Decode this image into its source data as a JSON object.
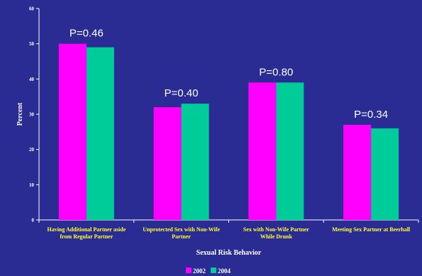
{
  "chart_data": {
    "type": "bar",
    "xlabel": "Sexual Risk Behavior",
    "ylabel": "Percent",
    "ylim": [
      0,
      60
    ],
    "yticks": [
      0,
      10,
      20,
      30,
      40,
      50,
      60
    ],
    "grid": false,
    "legend_position": "bottom",
    "categories": [
      [
        "Having Additional Partner aside",
        "from Regular Partner"
      ],
      [
        "Unprotected Sex with Non-Wife",
        "Partner"
      ],
      [
        "Sex with Non-Wife Partner",
        "While Drunk"
      ],
      [
        "Meeting Sex Partner at Beerhall"
      ]
    ],
    "series": [
      {
        "name": "2002",
        "color": "#ff00ff",
        "values": [
          50,
          32,
          39,
          27
        ]
      },
      {
        "name": "2004",
        "color": "#00cc99",
        "values": [
          49,
          33,
          39,
          26
        ]
      }
    ],
    "annotations": [
      "P=0.46",
      "P=0.40",
      "P=0.80",
      "P=0.34"
    ],
    "colors": {
      "background": "#2b2b94",
      "axis": "#ffffff",
      "category_text": "#ffff33"
    }
  }
}
